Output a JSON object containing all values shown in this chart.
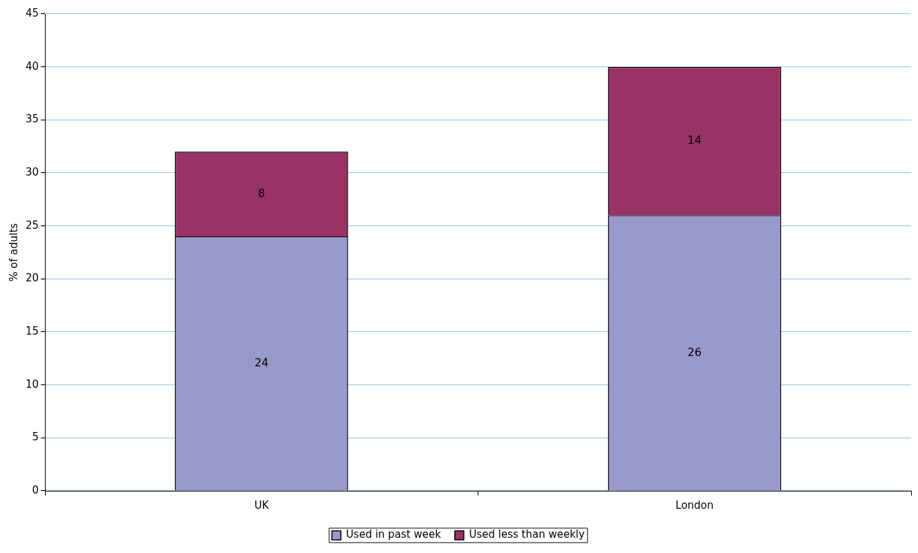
{
  "chart_data": {
    "type": "bar",
    "ylabel": "% of adults",
    "categories": [
      "UK",
      "London"
    ],
    "stacked": true,
    "series": [
      {
        "name": "Used in past week",
        "color": "#9999cc",
        "values": [
          24,
          26
        ]
      },
      {
        "name": "Used less than weekly",
        "color": "#993366",
        "values": [
          8,
          14
        ]
      }
    ],
    "ylim": [
      0,
      45
    ],
    "yticks": [
      0,
      5,
      10,
      15,
      20,
      25,
      30,
      35,
      40,
      45
    ],
    "grid": "y",
    "legend": "bottom",
    "data_labels": true
  }
}
